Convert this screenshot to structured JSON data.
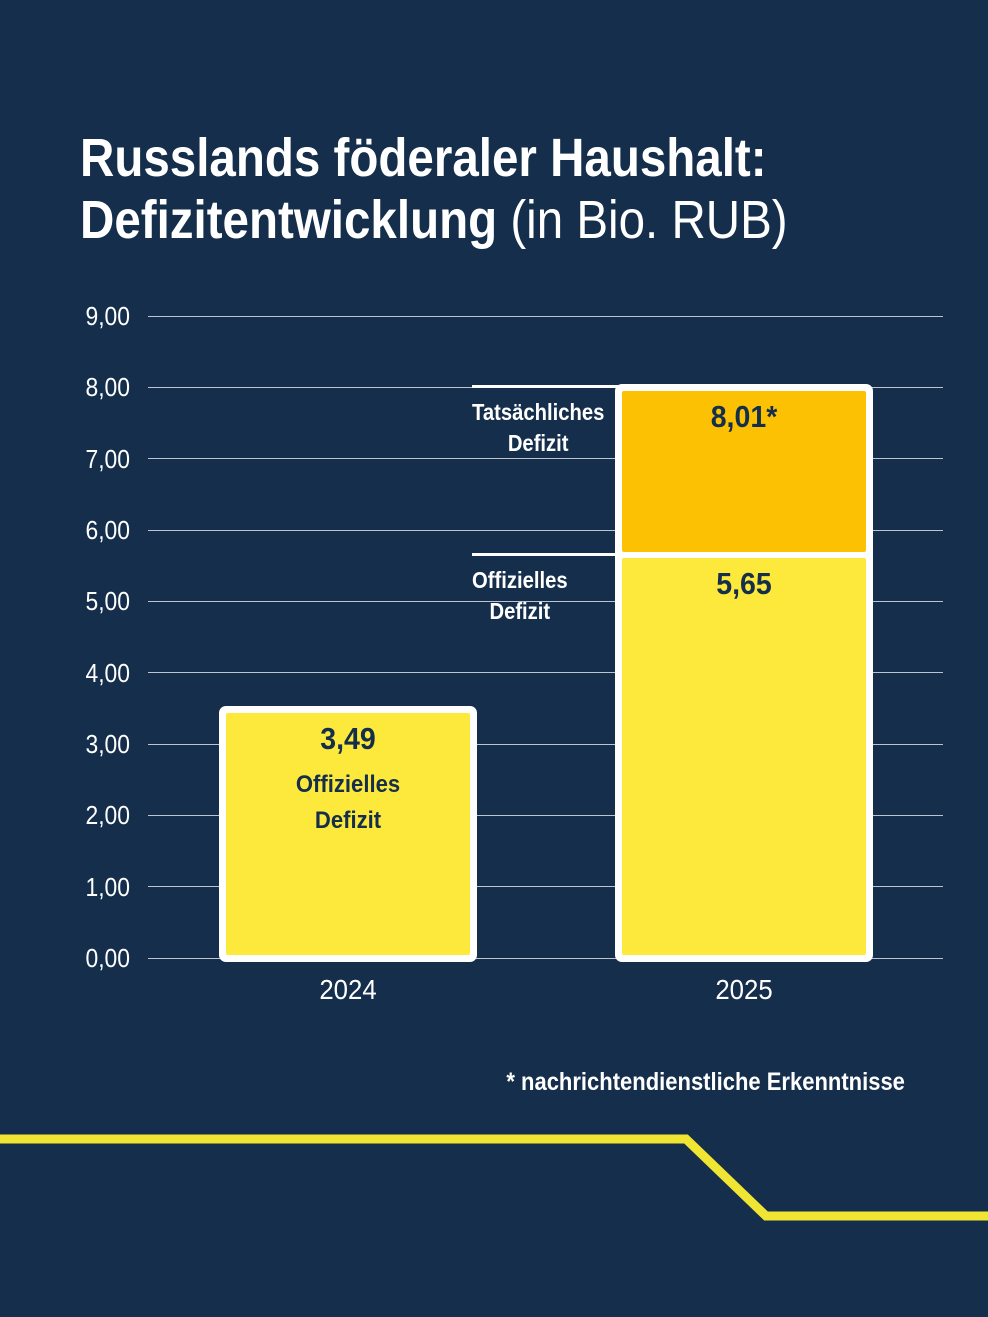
{
  "page": {
    "title_line1": "Russlands föderaler Haushalt:",
    "title_line2_bold": "Defizitentwicklung",
    "title_line2_light": " (in Bio. RUB)"
  },
  "colors": {
    "background": "#142E4B",
    "bar_yellow": "#FCE93C",
    "bar_orange": "#FDC104",
    "bar_border_white": "#FFFFFF",
    "gridline": "#B5C0CC",
    "text_light": "#FFFFFF",
    "text_dark": "#142E4B",
    "stripe_yellow": "#F0E532"
  },
  "chart_data": {
    "type": "bar",
    "stacked": true,
    "title": "Russlands föderaler Haushalt: Defizitentwicklung (in Bio. RUB)",
    "xlabel": "",
    "ylabel": "",
    "unit": "Bio. RUB",
    "ylim": [
      0,
      9
    ],
    "grid": true,
    "legend": "none",
    "categories": [
      "2024",
      "2025"
    ],
    "yticks": [
      {
        "value": 0,
        "label": "0,00"
      },
      {
        "value": 1,
        "label": "1,00"
      },
      {
        "value": 2,
        "label": "2,00"
      },
      {
        "value": 3,
        "label": "3,00"
      },
      {
        "value": 4,
        "label": "4,00"
      },
      {
        "value": 5,
        "label": "5,00"
      },
      {
        "value": 6,
        "label": "6,00"
      },
      {
        "value": 7,
        "label": "7,00"
      },
      {
        "value": 8,
        "label": "8,00"
      },
      {
        "value": 9,
        "label": "9,00"
      }
    ],
    "bars": [
      {
        "category": "2024",
        "total": 3.49,
        "segments": [
          {
            "name": "Offizielles Defizit",
            "value": 3.49,
            "label": "3,49",
            "color": "#FCE93C",
            "caption_lines": [
              "Offizielles",
              "Defizit"
            ]
          }
        ]
      },
      {
        "category": "2025",
        "total": 8.01,
        "segments": [
          {
            "name": "Offizielles Defizit",
            "value": 5.65,
            "label": "5,65",
            "color": "#FCE93C"
          },
          {
            "name": "Tatsächliches Defizit",
            "value": 2.36,
            "cumulative": 8.01,
            "label": "8,01*",
            "color": "#FDC104"
          }
        ]
      }
    ],
    "annotations": [
      {
        "lines": [
          "Tatsächliches",
          "Defizit"
        ],
        "value": 8.01
      },
      {
        "lines": [
          "Offizielles",
          "Defizit"
        ],
        "value": 5.65
      }
    ],
    "footnote": "* nachrichtendienstliche Erkenntnisse"
  }
}
